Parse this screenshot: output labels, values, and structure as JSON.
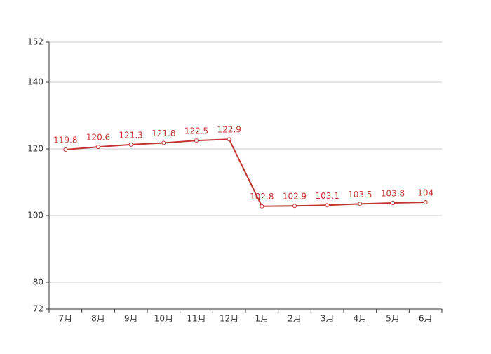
{
  "chart_data": {
    "type": "line",
    "categories": [
      "7月",
      "8月",
      "9月",
      "10月",
      "11月",
      "12月",
      "1月",
      "2月",
      "3月",
      "4月",
      "5月",
      "6月"
    ],
    "series": [
      {
        "color": "#c23531",
        "values": [
          119.8,
          120.6,
          121.3,
          121.8,
          122.5,
          122.9,
          102.8,
          102.9,
          103.1,
          103.5,
          103.8,
          104
        ]
      }
    ],
    "ylim": [
      72,
      152
    ],
    "yticks": [
      72,
      80,
      100,
      120,
      140,
      152
    ],
    "grid": true
  }
}
